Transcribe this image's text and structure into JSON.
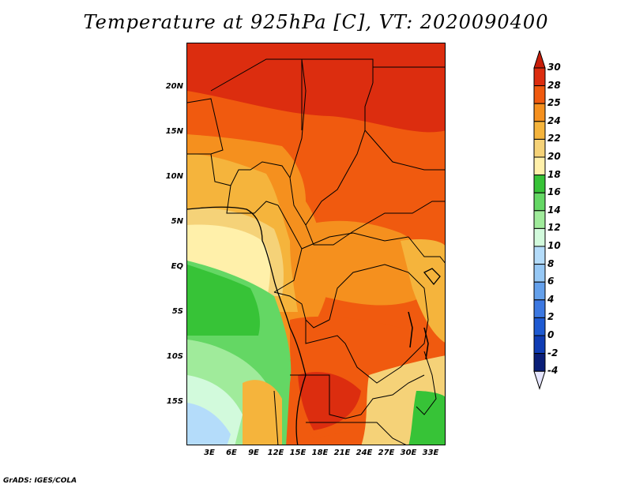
{
  "title": "Temperature at 925hPa [C], VT: 2020090400",
  "footer": "GrADS: IGES/COLA",
  "axes": {
    "lat_labels": [
      "20N",
      "15N",
      "10N",
      "5N",
      "EQ",
      "5S",
      "10S",
      "15S"
    ],
    "lon_labels": [
      "3E",
      "6E",
      "9E",
      "12E",
      "15E",
      "18E",
      "21E",
      "24E",
      "27E",
      "30E",
      "33E"
    ]
  },
  "colorbar": {
    "labels": [
      "30",
      "28",
      "25",
      "24",
      "22",
      "20",
      "18",
      "16",
      "14",
      "12",
      "10",
      "8",
      "6",
      "4",
      "2",
      "0",
      "-2",
      "-4"
    ],
    "colors": [
      "#c81e0a",
      "#dc2d0f",
      "#f05a0f",
      "#f5901e",
      "#f5b43c",
      "#f5d278",
      "#fff0aa",
      "#37c337",
      "#64d764",
      "#a0eb9b",
      "#d2fadc",
      "#b4dcfa",
      "#96c8f5",
      "#64a0eb",
      "#3c78e1",
      "#1e5ad2",
      "#0f3cb4",
      "#0a1e78",
      "#000050"
    ]
  }
}
